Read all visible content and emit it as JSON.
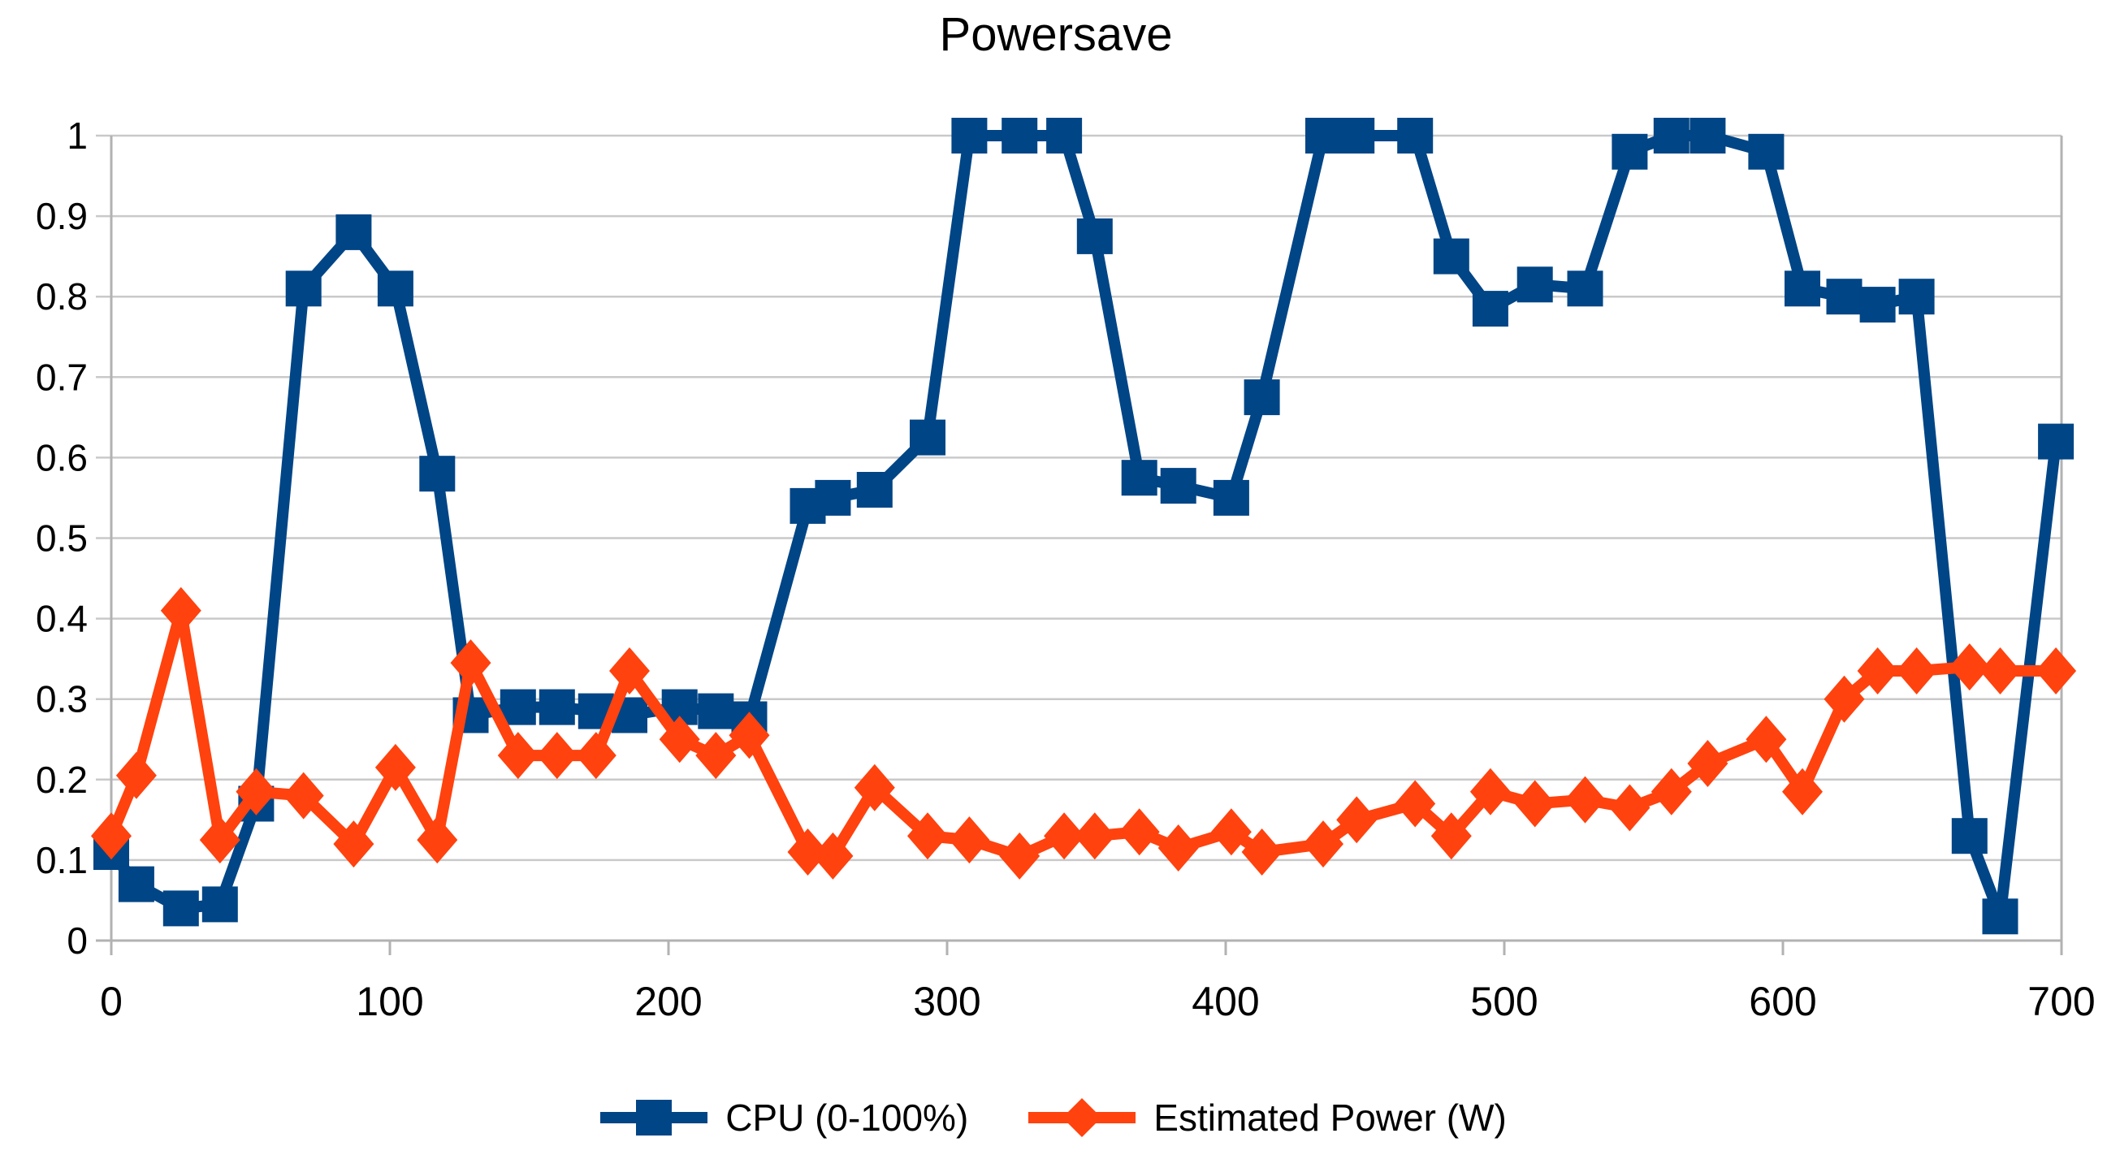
{
  "page": {
    "background": "#ffffff"
  },
  "chart_data": {
    "type": "line",
    "title": "Powersave",
    "xlabel": "",
    "ylabel": "",
    "xlim": [
      0,
      700
    ],
    "ylim": [
      0,
      1
    ],
    "x_ticks": {
      "values": [
        0,
        100,
        200,
        300,
        400,
        500,
        600,
        700
      ],
      "labels": [
        "0",
        "100",
        "200",
        "300",
        "400",
        "500",
        "600",
        "700"
      ]
    },
    "y_ticks": {
      "values": [
        0,
        0.1,
        0.2,
        0.3,
        0.4,
        0.5,
        0.6,
        0.7,
        0.8,
        0.9,
        1
      ],
      "labels": [
        "0",
        "0.1",
        "0.2",
        "0.3",
        "0.4",
        "0.5",
        "0.6",
        "0.7",
        "0.8",
        "0.9",
        "1"
      ]
    },
    "grid": "horizontal",
    "legend_position": "bottom-center",
    "colors": {
      "grid": "#c9c9c9",
      "axis": "#b2b2b2",
      "text": "#000000",
      "background": "#ffffff"
    },
    "x": [
      0,
      9,
      25,
      39,
      52,
      69,
      87,
      102,
      117,
      129,
      146,
      160,
      174,
      186,
      204,
      217,
      229,
      250,
      259,
      274,
      293,
      308,
      326,
      342,
      353,
      369,
      383,
      402,
      413,
      435,
      447,
      468,
      481,
      495,
      511,
      529,
      545,
      560,
      573,
      594,
      607,
      622,
      634,
      648,
      667,
      678,
      698
    ],
    "series": [
      {
        "name": "CPU (0-100%)",
        "color": "#004586",
        "marker": "square",
        "values": [
          0.11,
          0.07,
          0.04,
          0.045,
          0.17,
          0.81,
          0.88,
          0.81,
          0.58,
          0.28,
          0.29,
          0.29,
          0.285,
          0.28,
          0.29,
          0.285,
          0.275,
          0.54,
          0.55,
          0.56,
          0.625,
          1,
          1,
          1,
          0.875,
          0.575,
          0.565,
          0.55,
          0.675,
          1,
          1,
          1,
          0.85,
          0.785,
          0.815,
          0.81,
          0.98,
          1,
          1,
          0.98,
          0.81,
          0.8,
          0.79,
          0.8,
          0.13,
          0.03,
          0.62
        ]
      },
      {
        "name": "Estimated Power (W)",
        "color": "#ff420e",
        "marker": "diamond",
        "values": [
          0.13,
          0.205,
          0.41,
          0.125,
          0.185,
          0.18,
          0.12,
          0.215,
          0.125,
          0.345,
          0.23,
          0.23,
          0.23,
          0.335,
          0.25,
          0.23,
          0.255,
          0.11,
          0.105,
          0.19,
          0.13,
          0.125,
          0.105,
          0.13,
          0.13,
          0.135,
          0.115,
          0.135,
          0.11,
          0.12,
          0.15,
          0.17,
          0.13,
          0.185,
          0.17,
          0.175,
          0.165,
          0.185,
          0.22,
          0.25,
          0.185,
          0.3,
          0.335,
          0.335,
          0.34,
          0.335,
          0.335
        ]
      }
    ]
  }
}
